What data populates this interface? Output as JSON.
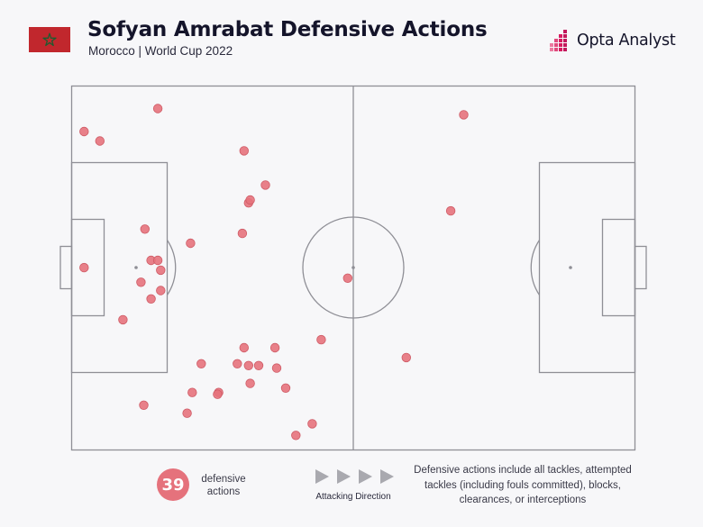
{
  "header": {
    "title": "Sofyan Amrabat Defensive Actions",
    "subtitle": "Morocco | World Cup 2022",
    "brand": "Opta Analyst",
    "flag_icon": "morocco-flag-icon"
  },
  "legend": {
    "count": "39",
    "count_label": "defensive actions",
    "direction_label": "Attacking Direction",
    "note": "Defensive actions include all tackles, attempted tackles (including fouls committed), blocks, clearances, or interceptions"
  },
  "colors": {
    "point": "#e5727c",
    "point_stroke": "#cf5b66",
    "pitch_line": "#8f8f96",
    "flag_red": "#c1272d",
    "flag_star": "#1f5b2f",
    "brand_accent": "#c2185b"
  },
  "chart_data": {
    "type": "scatter",
    "x_range": [
      0,
      100
    ],
    "y_range": [
      0,
      100
    ],
    "attacking_direction": "left-to-right",
    "points": [
      {
        "x": 2.2,
        "y": 87.5
      },
      {
        "x": 5.0,
        "y": 84.9
      },
      {
        "x": 15.3,
        "y": 93.8
      },
      {
        "x": 30.6,
        "y": 82.2
      },
      {
        "x": 34.4,
        "y": 72.8
      },
      {
        "x": 31.4,
        "y": 67.9
      },
      {
        "x": 31.7,
        "y": 68.7
      },
      {
        "x": 30.3,
        "y": 59.5
      },
      {
        "x": 13.0,
        "y": 60.7
      },
      {
        "x": 21.1,
        "y": 56.8
      },
      {
        "x": 14.1,
        "y": 52.1
      },
      {
        "x": 15.3,
        "y": 52.1
      },
      {
        "x": 15.8,
        "y": 49.4
      },
      {
        "x": 2.2,
        "y": 50.1
      },
      {
        "x": 12.3,
        "y": 46.1
      },
      {
        "x": 15.8,
        "y": 43.8
      },
      {
        "x": 14.1,
        "y": 41.5
      },
      {
        "x": 9.1,
        "y": 35.8
      },
      {
        "x": 49.0,
        "y": 47.2
      },
      {
        "x": 44.3,
        "y": 30.3
      },
      {
        "x": 30.6,
        "y": 28.1
      },
      {
        "x": 36.1,
        "y": 28.1
      },
      {
        "x": 23.0,
        "y": 23.7
      },
      {
        "x": 29.4,
        "y": 23.7
      },
      {
        "x": 31.4,
        "y": 23.2
      },
      {
        "x": 33.2,
        "y": 23.2
      },
      {
        "x": 36.4,
        "y": 22.5
      },
      {
        "x": 31.7,
        "y": 18.3
      },
      {
        "x": 38.0,
        "y": 17.0
      },
      {
        "x": 21.4,
        "y": 15.8
      },
      {
        "x": 26.1,
        "y": 15.8
      },
      {
        "x": 25.9,
        "y": 15.3
      },
      {
        "x": 12.8,
        "y": 12.3
      },
      {
        "x": 20.5,
        "y": 10.1
      },
      {
        "x": 42.7,
        "y": 7.2
      },
      {
        "x": 39.8,
        "y": 4.0
      },
      {
        "x": 69.6,
        "y": 92.1
      },
      {
        "x": 67.3,
        "y": 65.7
      },
      {
        "x": 59.4,
        "y": 25.4
      }
    ]
  }
}
